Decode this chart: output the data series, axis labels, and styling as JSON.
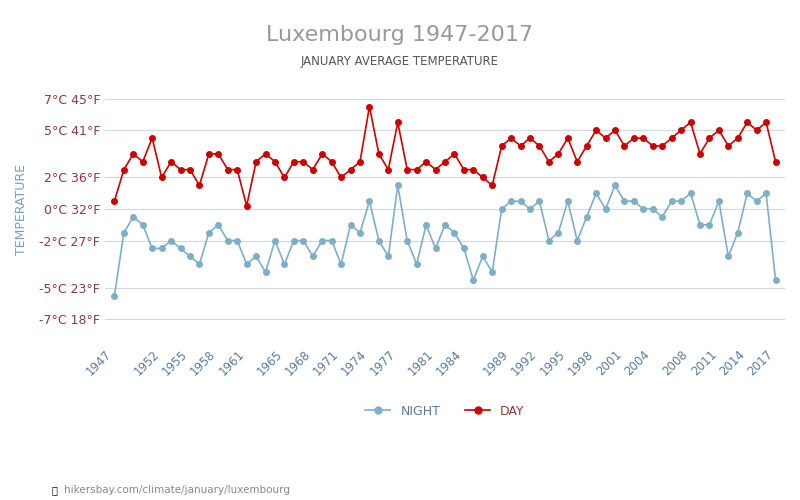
{
  "title": "Luxembourg 1947-2017",
  "subtitle": "JANUARY AVERAGE TEMPERATURE",
  "ylabel": "TEMPERATURE",
  "title_color": "#888888",
  "subtitle_color": "#555555",
  "ylabel_color": "#7a9ec0",
  "background_color": "#ffffff",
  "grid_color": "#d0d8e0",
  "years": [
    1947,
    1948,
    1949,
    1950,
    1951,
    1952,
    1953,
    1954,
    1955,
    1956,
    1957,
    1958,
    1959,
    1960,
    1961,
    1962,
    1963,
    1964,
    1965,
    1966,
    1967,
    1968,
    1969,
    1970,
    1971,
    1972,
    1973,
    1974,
    1975,
    1976,
    1977,
    1978,
    1979,
    1980,
    1981,
    1982,
    1983,
    1984,
    1985,
    1986,
    1987,
    1988,
    1989,
    1990,
    1991,
    1992,
    1993,
    1994,
    1995,
    1996,
    1997,
    1998,
    1999,
    2000,
    2001,
    2002,
    2003,
    2004,
    2005,
    2006,
    2007,
    2008,
    2009,
    2010,
    2011,
    2012,
    2013,
    2014,
    2015,
    2016,
    2017
  ],
  "day_temps": [
    0.5,
    2.5,
    3.5,
    3.0,
    4.5,
    2.0,
    3.0,
    2.5,
    2.5,
    1.5,
    3.5,
    3.5,
    2.5,
    2.5,
    0.2,
    3.0,
    3.5,
    3.0,
    2.0,
    3.0,
    3.0,
    2.5,
    3.5,
    3.0,
    2.0,
    2.5,
    3.0,
    6.5,
    3.5,
    2.5,
    5.5,
    2.5,
    2.5,
    3.0,
    2.5,
    3.0,
    3.5,
    2.5,
    2.5,
    2.0,
    1.5,
    4.0,
    4.5,
    4.0,
    4.5,
    4.0,
    3.0,
    3.5,
    4.5,
    3.0,
    4.0,
    5.0,
    4.5,
    5.0,
    4.0,
    4.5,
    4.5,
    4.0,
    4.0,
    4.5,
    5.0,
    5.5,
    3.5,
    4.5,
    5.0,
    4.0,
    4.5,
    5.5,
    5.0,
    5.5,
    3.0
  ],
  "night_temps": [
    -5.5,
    -1.5,
    -0.5,
    -1.0,
    -2.5,
    -2.5,
    -2.0,
    -2.5,
    -3.0,
    -3.5,
    -1.5,
    -1.0,
    -2.0,
    -2.0,
    -3.5,
    -3.0,
    -4.0,
    -2.0,
    -3.5,
    -2.0,
    -2.0,
    -3.0,
    -2.0,
    -2.0,
    -3.5,
    -1.0,
    -1.5,
    0.5,
    -2.0,
    -3.0,
    1.5,
    -2.0,
    -3.5,
    -1.0,
    -2.5,
    -1.0,
    -1.5,
    -2.5,
    -4.5,
    -3.0,
    -4.0,
    0.0,
    0.5,
    0.5,
    0.0,
    0.5,
    -2.0,
    -1.5,
    0.5,
    -2.0,
    -0.5,
    1.0,
    0.0,
    1.5,
    0.5,
    0.5,
    0.0,
    0.0,
    -0.5,
    0.5,
    0.5,
    1.0,
    -1.0,
    -1.0,
    0.5,
    -3.0,
    -1.5,
    1.0,
    0.5,
    1.0,
    -4.5
  ],
  "day_color": "#cc0000",
  "night_color": "#7fafc8",
  "day_label": "DAY",
  "night_label": "NIGHT",
  "yticks_c": [
    7,
    5,
    2,
    0,
    -2,
    -5,
    -7
  ],
  "yticks_f": [
    45,
    41,
    36,
    32,
    27,
    23,
    18
  ],
  "xtick_years": [
    1947,
    1952,
    1955,
    1958,
    1961,
    1965,
    1968,
    1971,
    1974,
    1977,
    1981,
    1984,
    1989,
    1992,
    1995,
    1998,
    2001,
    2004,
    2008,
    2011,
    2014,
    2017
  ],
  "ylim": [
    -8.5,
    8.5
  ],
  "footer_text": "hikersbay.com/climate/january/luxembourg",
  "footer_color": "#888888",
  "marker_size": 4
}
